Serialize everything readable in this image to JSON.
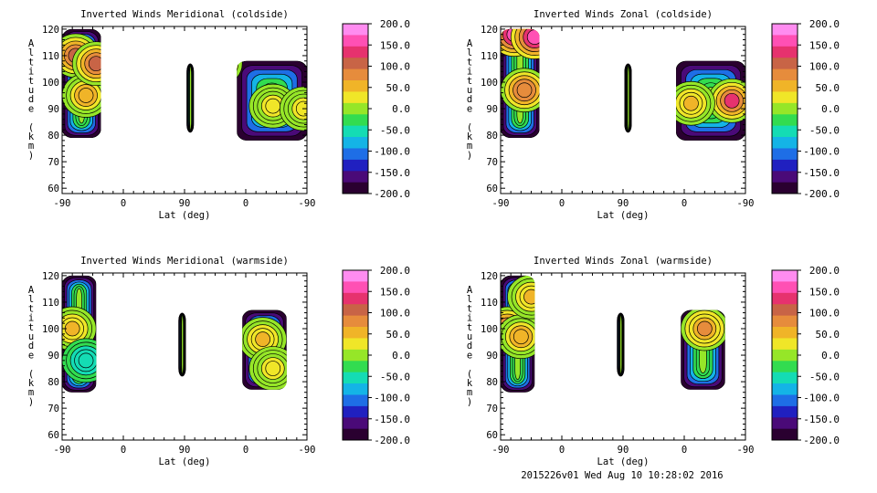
{
  "chart_data": [
    {
      "type": "heatmap",
      "title": "Inverted Winds Meridional (coldside)",
      "xlabel": "Lat (deg)",
      "ylabel": "Altitude (km)",
      "x_ticks": [
        "-90",
        "0",
        "90",
        "0",
        "-90"
      ],
      "y_ticks": [
        "60",
        "70",
        "80",
        "90",
        "100",
        "110",
        "120"
      ],
      "ylim": [
        58,
        121
      ],
      "colorbar": {
        "min": -200,
        "max": 200,
        "ticks": [
          "200.0",
          "150.0",
          "100.0",
          "50.0",
          "0.0",
          "-50.0",
          "-100.0",
          "-150.0",
          "-200.0"
        ]
      },
      "regions": [
        {
          "x": [
            -90,
            -33
          ],
          "y": [
            79,
            120
          ]
        },
        {
          "x": [
            -5,
            -5
          ],
          "y": [
            81,
            107
          ]
        },
        {
          "x": [
            -13,
            90
          ],
          "y": [
            78,
            108
          ]
        }
      ],
      "features": [
        {
          "x": [
            -70,
            110
          ],
          "value": 110
        },
        {
          "x": [
            -55,
            95
          ],
          "value": 60
        },
        {
          "x": [
            -40,
            107
          ],
          "value": 100
        },
        {
          "x": [
            40,
            91
          ],
          "value": 35
        },
        {
          "x": [
            85,
            90
          ],
          "value": 30
        }
      ]
    },
    {
      "type": "heatmap",
      "title": "Inverted Winds Zonal (coldside)",
      "xlabel": "Lat (deg)",
      "ylabel": "Altitude (km)",
      "x_ticks": [
        "-90",
        "0",
        "90",
        "0",
        "-90"
      ],
      "y_ticks": [
        "60",
        "70",
        "80",
        "90",
        "100",
        "110",
        "120"
      ],
      "ylim": [
        58,
        121
      ],
      "colorbar": {
        "min": -200,
        "max": 200,
        "ticks": [
          "200.0",
          "150.0",
          "100.0",
          "50.0",
          "0.0",
          "-50.0",
          "-100.0",
          "-150.0",
          "-200.0"
        ]
      },
      "regions": [
        {
          "x": [
            -90,
            -33
          ],
          "y": [
            79,
            120
          ]
        },
        {
          "x": [
            -6,
            -6
          ],
          "y": [
            81,
            107
          ]
        },
        {
          "x": [
            -12,
            90
          ],
          "y": [
            78,
            108
          ]
        }
      ],
      "features": [
        {
          "x": [
            -70,
            118
          ],
          "value": 160
        },
        {
          "x": [
            -40,
            117
          ],
          "value": 160
        },
        {
          "x": [
            -55,
            97
          ],
          "value": 90
        },
        {
          "x": [
            70,
            93
          ],
          "value": 120
        },
        {
          "x": [
            10,
            92
          ],
          "value": 40
        }
      ]
    },
    {
      "type": "heatmap",
      "title": "Inverted Winds Meridional (warmside)",
      "xlabel": "Lat (deg)",
      "ylabel": "Altitude (km)",
      "x_ticks": [
        "-90",
        "0",
        "90",
        "0",
        "-90"
      ],
      "y_ticks": [
        "60",
        "70",
        "80",
        "90",
        "100",
        "110",
        "120"
      ],
      "ylim": [
        58,
        121
      ],
      "colorbar": {
        "min": -200,
        "max": 200,
        "ticks": [
          "200.0",
          "150.0",
          "100.0",
          "50.0",
          "0.0",
          "-50.0",
          "-100.0",
          "-150.0",
          "-200.0"
        ]
      },
      "regions": [
        {
          "x": [
            -90,
            -40
          ],
          "y": [
            76,
            120
          ]
        },
        {
          "x": [
            -17,
            -12
          ],
          "y": [
            82,
            106
          ]
        },
        {
          "x": [
            -5,
            60
          ],
          "y": [
            77,
            107
          ]
        }
      ],
      "features": [
        {
          "x": [
            -75,
            100
          ],
          "value": 40
        },
        {
          "x": [
            -55,
            88
          ],
          "value": -60
        },
        {
          "x": [
            25,
            96
          ],
          "value": 40
        },
        {
          "x": [
            40,
            85
          ],
          "value": 30
        }
      ]
    },
    {
      "type": "heatmap",
      "title": "Inverted Winds Zonal (warmside)",
      "xlabel": "Lat (deg)",
      "ylabel": "Altitude (km)",
      "x_ticks": [
        "-90",
        "0",
        "90",
        "0",
        "-90"
      ],
      "y_ticks": [
        "60",
        "70",
        "80",
        "90",
        "100",
        "110",
        "120"
      ],
      "ylim": [
        58,
        121
      ],
      "colorbar": {
        "min": -200,
        "max": 200,
        "ticks": [
          "200.0",
          "150.0",
          "100.0",
          "50.0",
          "0.0",
          "-50.0",
          "-100.0",
          "-150.0",
          "-200.0"
        ]
      },
      "regions": [
        {
          "x": [
            -90,
            -40
          ],
          "y": [
            76,
            120
          ]
        },
        {
          "x": [
            -17,
            -12
          ],
          "y": [
            82,
            106
          ]
        },
        {
          "x": [
            -5,
            60
          ],
          "y": [
            77,
            107
          ]
        }
      ],
      "features": [
        {
          "x": [
            -80,
            100
          ],
          "value": 90
        },
        {
          "x": [
            -60,
            97
          ],
          "value": 60
        },
        {
          "x": [
            30,
            100
          ],
          "value": 70
        },
        {
          "x": [
            -45,
            112
          ],
          "value": 50
        }
      ]
    }
  ],
  "footer": "2015226v01 Wed Aug 10 10:28:02 2016",
  "colors": {
    "colorbar_stops": [
      "#2a0030",
      "#4a0a78",
      "#2020c0",
      "#1e6ee6",
      "#14b4e6",
      "#14dcb4",
      "#32dc50",
      "#96e628",
      "#f0e628",
      "#f0b428",
      "#e68c3c",
      "#c86446",
      "#e6326e",
      "#ff50b4",
      "#ff8cf0"
    ],
    "background": "#ffffff"
  }
}
